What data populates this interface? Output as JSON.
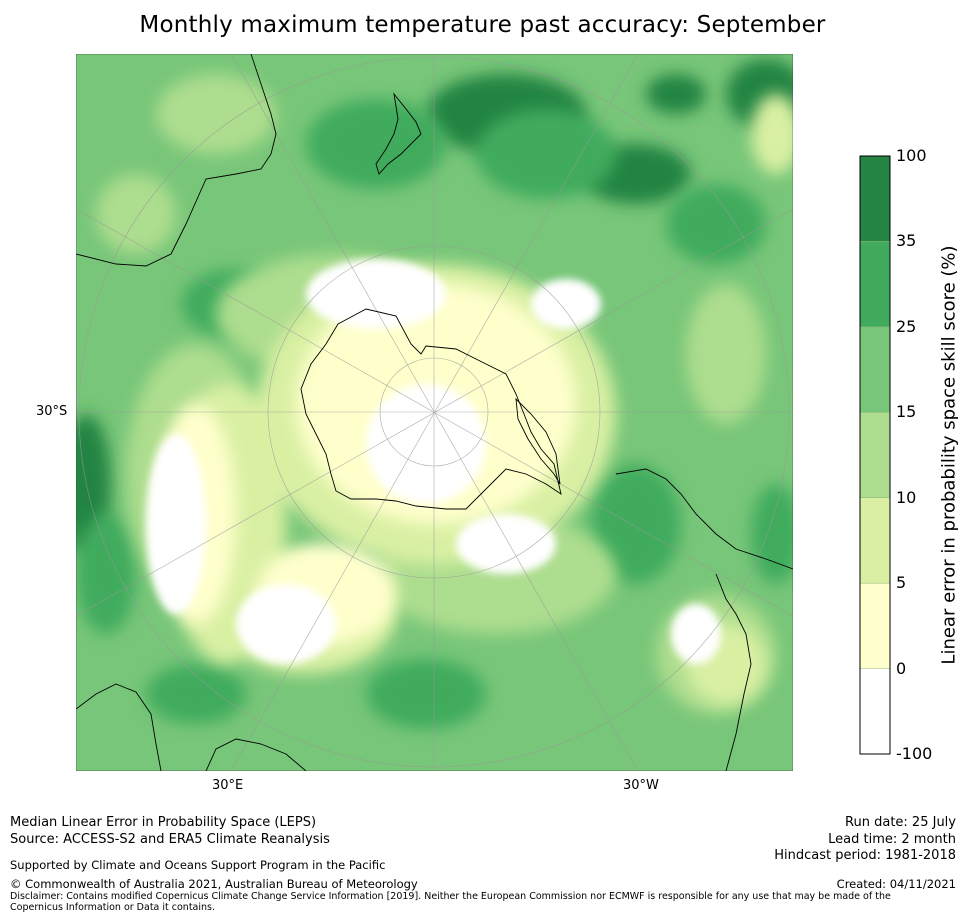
{
  "title": "Monthly maximum temperature past accuracy: September",
  "map": {
    "projection": "south-polar-stereographic",
    "lat_labels": [
      "30°S"
    ],
    "lon_labels": [
      "30°E",
      "30°W"
    ],
    "land_outline_color": "#000000"
  },
  "colorbar": {
    "label": "Linear error in probability space skill score (%)",
    "ticks": [
      "100",
      "35",
      "25",
      "15",
      "10",
      "5",
      "0",
      "-100"
    ],
    "bins": [
      {
        "from": -100,
        "to": 0,
        "color": "#ffffff"
      },
      {
        "from": 0,
        "to": 5,
        "color": "#ffffcc"
      },
      {
        "from": 5,
        "to": 10,
        "color": "#d9f0a3"
      },
      {
        "from": 10,
        "to": 15,
        "color": "#addd8e"
      },
      {
        "from": 15,
        "to": 25,
        "color": "#78c679"
      },
      {
        "from": 25,
        "to": 35,
        "color": "#41ab5d"
      },
      {
        "from": 35,
        "to": 100,
        "color": "#238443"
      }
    ]
  },
  "footer": {
    "line1": "Median Linear Error in Probability Space (LEPS)",
    "line2": "Source: ACCESS-S2 and ERA5 Climate Reanalysis",
    "support": "Supported by Climate and Oceans Support Program in the Pacific",
    "copyright": "© Commonwealth of Australia 2021, Australian Bureau of Meteorology",
    "disclaimer": "Disclaimer: Contains modified Copernicus Climate Change Service Information [2019]. Neither the European Commission nor ECMWF is responsible for any use that may be made of the Copernicus Information or Data it contains.",
    "run_date": "Run date: 25 July",
    "lead_time": "Lead time: 2 month",
    "hindcast": "Hindcast period: 1981-2018",
    "created": "Created: 04/11/2021"
  }
}
